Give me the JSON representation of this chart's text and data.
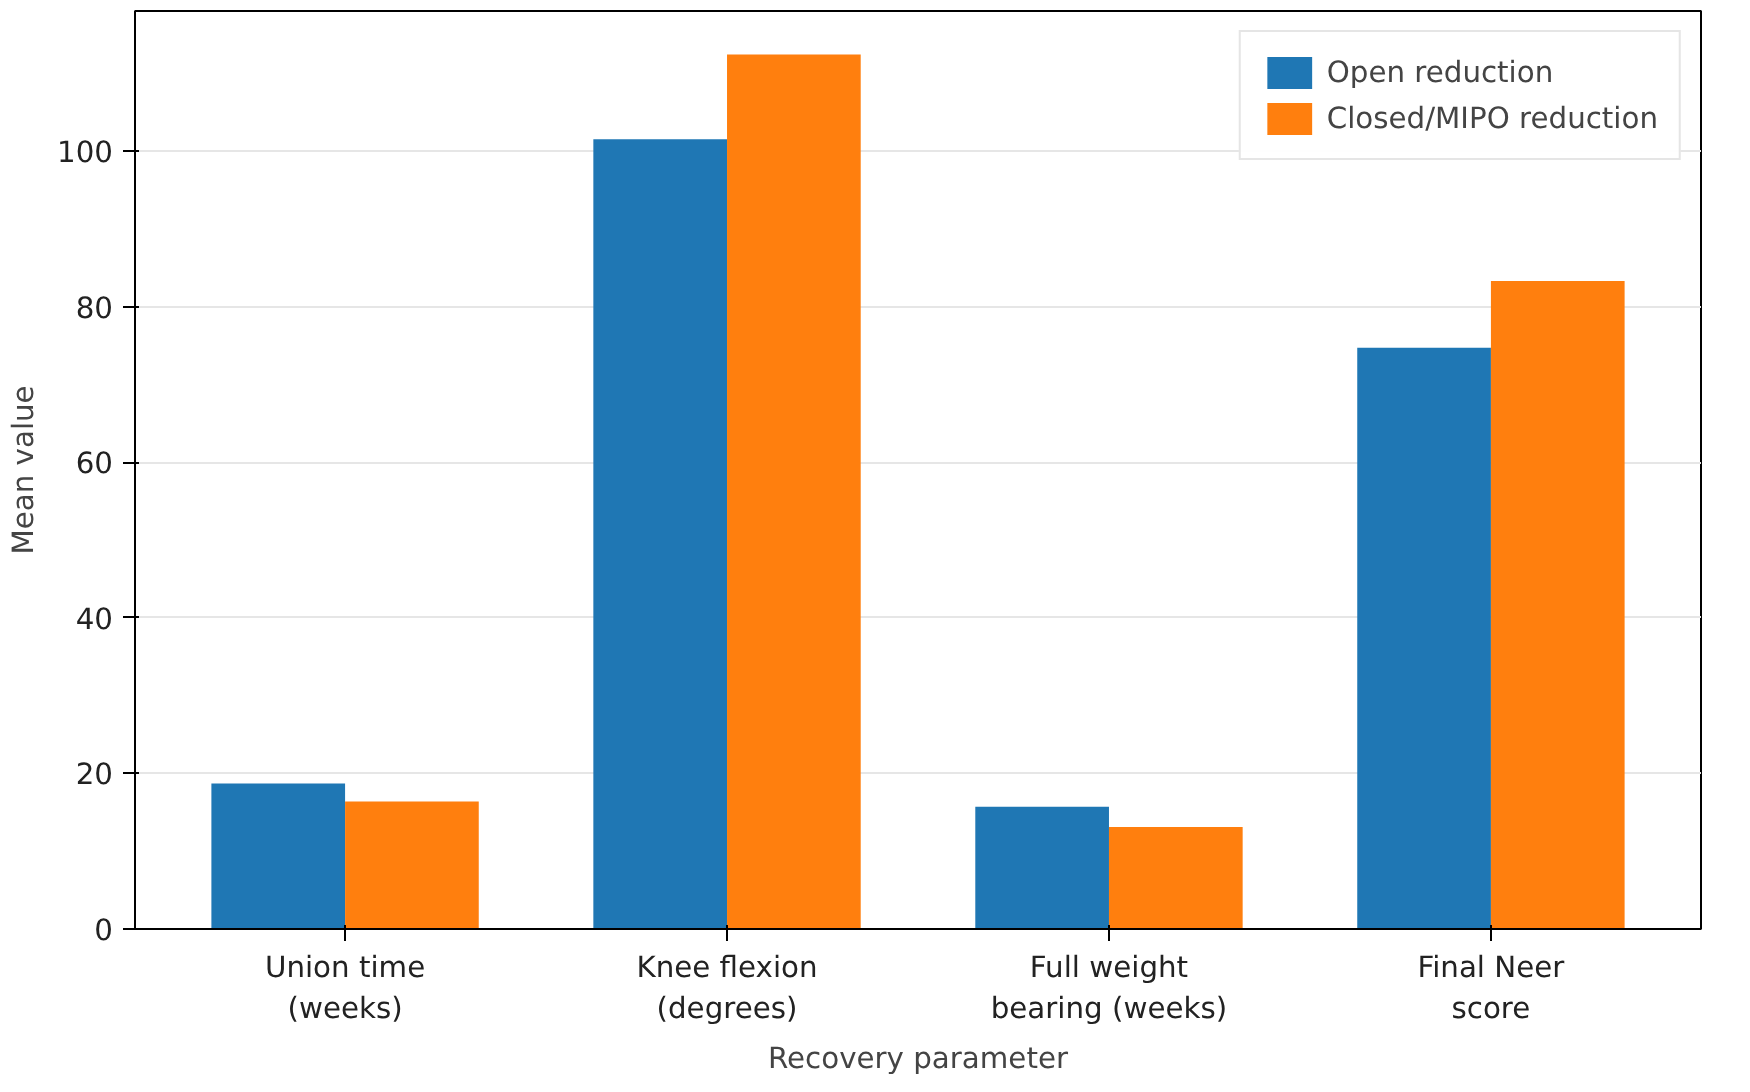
{
  "chart_data": {
    "type": "bar",
    "xlabel": "Recovery parameter",
    "ylabel": "Mean value",
    "categories": [
      "Union time\n(weeks)",
      "Knee flexion\n(degrees)",
      "Full weight\nbearing (weeks)",
      "Final Neer\nscore"
    ],
    "series": [
      {
        "name": "Open reduction",
        "color": "#1f77b4",
        "values": [
          18.7,
          101.5,
          15.7,
          74.7
        ]
      },
      {
        "name": "Closed/MIPO reduction",
        "color": "#ff7f0e",
        "values": [
          16.4,
          112.4,
          13.1,
          83.3
        ]
      }
    ],
    "ylim": [
      0,
      118
    ],
    "yticks": [
      0,
      20,
      40,
      60,
      80,
      100
    ],
    "grid": "y",
    "legend": "top right"
  }
}
